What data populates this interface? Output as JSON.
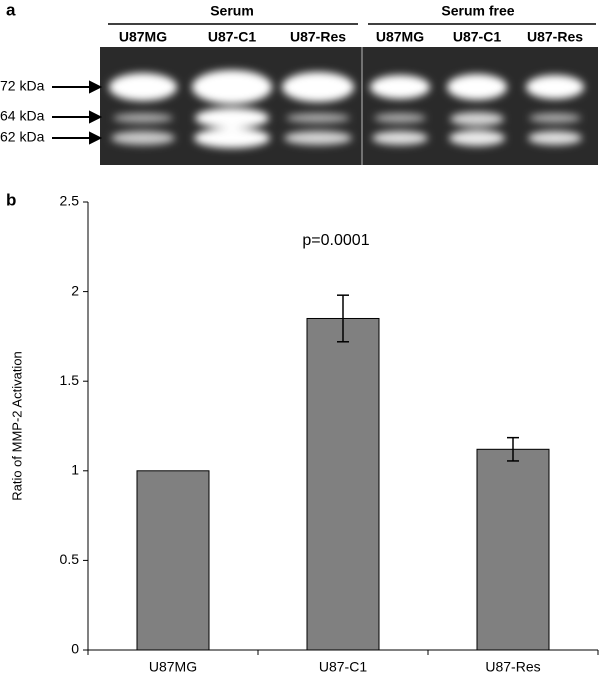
{
  "panel_a": {
    "label": "a",
    "groups": [
      "Serum",
      "Serum free"
    ],
    "lanes": [
      "U87MG",
      "U87-C1",
      "U87-Res",
      "U87MG",
      "U87-C1",
      "U87-Res"
    ],
    "markers": [
      "72 kDa",
      "64 kDa",
      "62 kDa"
    ]
  },
  "panel_b": {
    "label": "b"
  },
  "chart_data": {
    "type": "bar",
    "ylabel": "Ratio of MMP-2 Activation",
    "annotation": "p=0.0001",
    "categories": [
      "U87MG",
      "U87-C1",
      "U87-Res"
    ],
    "values": [
      1,
      1.85,
      1.12
    ],
    "errors": [
      null,
      0.13,
      0.065
    ],
    "color": "#808080",
    "ylim": [
      0,
      2.5
    ],
    "yticks": [
      0,
      0.5,
      1,
      1.5,
      2,
      2.5
    ],
    "grid": false
  }
}
